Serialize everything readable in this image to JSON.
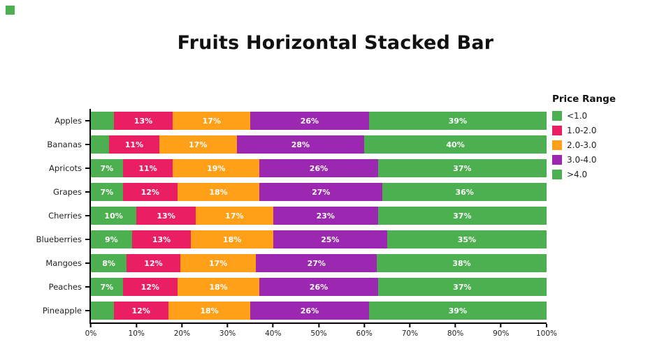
{
  "page": {
    "title": "Fruits Horizontal Stacked Bar"
  },
  "legend": {
    "title": "Price Range",
    "items": [
      {
        "label": "<1.0",
        "color": "#4caf50"
      },
      {
        "label": "1.0-2.0",
        "color": "#e91e63"
      },
      {
        "label": "2.0-3.0",
        "color": "#ffa018"
      },
      {
        "label": "3.0-4.0",
        "color": "#9c27b0"
      },
      {
        "label": ">4.0",
        "color": "#4caf50"
      }
    ]
  },
  "chart_data": {
    "type": "bar",
    "orientation": "horizontal",
    "stacked": true,
    "title": "Fruits Horizontal Stacked Bar",
    "categories": [
      "Apples",
      "Bananas",
      "Apricots",
      "Grapes",
      "Cherries",
      "Blueberries",
      "Mangoes",
      "Peaches",
      "Pineapple"
    ],
    "series": [
      {
        "name": "<1.0",
        "color": "#4caf50",
        "values": [
          5,
          4,
          7,
          7,
          10,
          9,
          8,
          7,
          5
        ],
        "labels": [
          "",
          "",
          "7%",
          "7%",
          "10%",
          "9%",
          "8%",
          "7%",
          ""
        ]
      },
      {
        "name": "1.0-2.0",
        "color": "#e91e63",
        "values": [
          13,
          11,
          11,
          12,
          13,
          13,
          12,
          12,
          12
        ],
        "labels": [
          "13%",
          "11%",
          "11%",
          "12%",
          "13%",
          "13%",
          "12%",
          "12%",
          "12%"
        ]
      },
      {
        "name": "2.0-3.0",
        "color": "#ffa018",
        "values": [
          17,
          17,
          19,
          18,
          17,
          18,
          17,
          18,
          18
        ],
        "labels": [
          "17%",
          "17%",
          "19%",
          "18%",
          "17%",
          "18%",
          "17%",
          "18%",
          "18%"
        ]
      },
      {
        "name": "3.0-4.0",
        "color": "#9c27b0",
        "values": [
          26,
          28,
          26,
          27,
          23,
          25,
          27,
          26,
          26
        ],
        "labels": [
          "26%",
          "28%",
          "26%",
          "27%",
          "23%",
          "25%",
          "27%",
          "26%",
          "26%"
        ]
      },
      {
        "name": ">4.0",
        "color": "#4caf50",
        "values": [
          39,
          40,
          37,
          36,
          37,
          35,
          38,
          37,
          39
        ],
        "labels": [
          "39%",
          "40%",
          "37%",
          "36%",
          "37%",
          "35%",
          "38%",
          "37%",
          "39%"
        ]
      }
    ],
    "x_ticks": [
      "0%",
      "10%",
      "20%",
      "30%",
      "40%",
      "50%",
      "60%",
      "70%",
      "80%",
      "90%",
      "100%"
    ],
    "xlim": [
      0,
      100
    ],
    "xlabel": "",
    "ylabel": "",
    "grid": false,
    "legend_position": "right"
  }
}
